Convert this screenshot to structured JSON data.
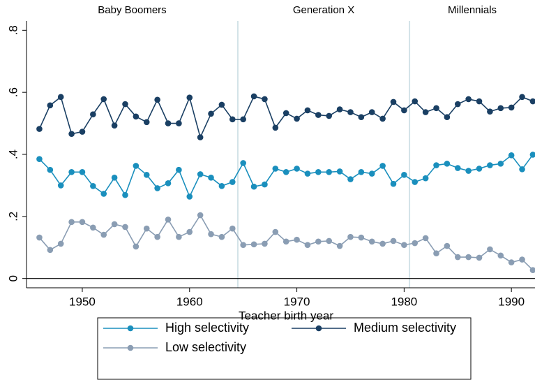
{
  "chart_data": {
    "type": "line",
    "x_label": "Teacher birth year",
    "xlim": [
      1944.8,
      1992.2
    ],
    "xticks": [
      1950,
      1960,
      1970,
      1980,
      1990
    ],
    "ylim": [
      -0.03,
      0.83
    ],
    "yticks": [
      0,
      {
        "value": 0.2,
        "label": ".2"
      },
      {
        "value": 0.4,
        "label": ".4"
      },
      {
        "value": 0.6,
        "label": ".6"
      },
      {
        "value": 0.8,
        "label": ".8"
      }
    ],
    "yline": 0,
    "cohort_breaks": [
      1964.5,
      1980.5
    ],
    "cohort_labels": [
      "Baby Boomers",
      "Generation X",
      "Millennials"
    ],
    "x": [
      1946,
      1947,
      1948,
      1949,
      1950,
      1951,
      1952,
      1953,
      1954,
      1955,
      1956,
      1957,
      1958,
      1959,
      1960,
      1961,
      1962,
      1963,
      1964,
      1965,
      1966,
      1967,
      1968,
      1969,
      1970,
      1971,
      1972,
      1973,
      1974,
      1975,
      1976,
      1977,
      1978,
      1979,
      1980,
      1981,
      1982,
      1983,
      1984,
      1985,
      1986,
      1987,
      1988,
      1989,
      1990,
      1991,
      1992
    ],
    "series": [
      {
        "name": "High selectivity",
        "color": "#1a8fbd",
        "values": [
          0.385,
          0.35,
          0.3,
          0.343,
          0.343,
          0.298,
          0.273,
          0.325,
          0.269,
          0.363,
          0.334,
          0.291,
          0.307,
          0.35,
          0.264,
          0.336,
          0.325,
          0.298,
          0.311,
          0.372,
          0.296,
          0.303,
          0.354,
          0.343,
          0.354,
          0.338,
          0.343,
          0.343,
          0.345,
          0.32,
          0.343,
          0.338,
          0.363,
          0.305,
          0.334,
          0.311,
          0.323,
          0.365,
          0.37,
          0.356,
          0.347,
          0.354,
          0.365,
          0.37,
          0.397,
          0.352,
          0.399
        ]
      },
      {
        "name": "Medium selectivity",
        "color": "#1a3f63",
        "values": [
          0.482,
          0.558,
          0.585,
          0.466,
          0.473,
          0.529,
          0.578,
          0.493,
          0.562,
          0.522,
          0.504,
          0.576,
          0.5,
          0.5,
          0.583,
          0.455,
          0.531,
          0.56,
          0.513,
          0.513,
          0.587,
          0.578,
          0.486,
          0.533,
          0.515,
          0.542,
          0.527,
          0.524,
          0.545,
          0.536,
          0.52,
          0.536,
          0.515,
          0.569,
          0.542,
          0.571,
          0.536,
          0.549,
          0.52,
          0.562,
          0.578,
          0.571,
          0.538,
          0.549,
          0.551,
          0.585,
          0.571
        ]
      },
      {
        "name": "Low selectivity",
        "color": "#8a9db3",
        "values": [
          0.132,
          0.092,
          0.112,
          0.182,
          0.182,
          0.164,
          0.141,
          0.175,
          0.166,
          0.103,
          0.161,
          0.134,
          0.19,
          0.134,
          0.15,
          0.204,
          0.143,
          0.134,
          0.161,
          0.108,
          0.11,
          0.112,
          0.15,
          0.119,
          0.125,
          0.108,
          0.119,
          0.121,
          0.105,
          0.134,
          0.132,
          0.119,
          0.112,
          0.121,
          0.108,
          0.114,
          0.13,
          0.081,
          0.105,
          0.069,
          0.069,
          0.067,
          0.094,
          0.074,
          0.052,
          0.061,
          0.027
        ]
      }
    ]
  }
}
